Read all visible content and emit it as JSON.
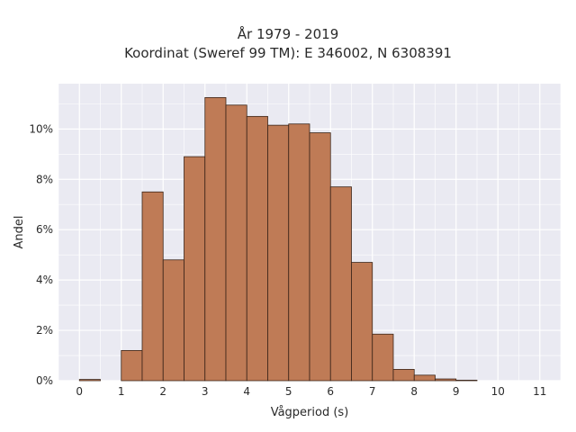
{
  "chart_data": {
    "type": "bar",
    "title_line1": "År 1979 - 2019",
    "title_line2": "Koordinat (Sweref 99 TM): E 346002, N 6308391",
    "xlabel": "Vågperiod (s)",
    "ylabel": "Andel",
    "xlim": [
      -0.5,
      11.5
    ],
    "ylim": [
      0,
      11.8
    ],
    "xticks": [
      0,
      1,
      2,
      3,
      4,
      5,
      6,
      7,
      8,
      9,
      10,
      11
    ],
    "yticks": [
      0,
      2,
      4,
      6,
      8,
      10
    ],
    "ytick_labels": [
      "0%",
      "2%",
      "4%",
      "6%",
      "8%",
      "10%"
    ],
    "bin_width": 0.5,
    "bins": [
      {
        "x0": 0.0,
        "x1": 0.5,
        "value": 0.05
      },
      {
        "x0": 1.0,
        "x1": 1.5,
        "value": 1.2
      },
      {
        "x0": 1.5,
        "x1": 2.0,
        "value": 7.5
      },
      {
        "x0": 2.0,
        "x1": 2.5,
        "value": 4.8
      },
      {
        "x0": 2.5,
        "x1": 3.0,
        "value": 8.9
      },
      {
        "x0": 3.0,
        "x1": 3.5,
        "value": 11.25
      },
      {
        "x0": 3.5,
        "x1": 4.0,
        "value": 10.95
      },
      {
        "x0": 4.0,
        "x1": 4.5,
        "value": 10.5
      },
      {
        "x0": 4.5,
        "x1": 5.0,
        "value": 10.15
      },
      {
        "x0": 5.0,
        "x1": 5.5,
        "value": 10.2
      },
      {
        "x0": 5.5,
        "x1": 6.0,
        "value": 9.85
      },
      {
        "x0": 6.0,
        "x1": 6.5,
        "value": 7.7
      },
      {
        "x0": 6.5,
        "x1": 7.0,
        "value": 4.7
      },
      {
        "x0": 7.0,
        "x1": 7.5,
        "value": 1.85
      },
      {
        "x0": 7.5,
        "x1": 8.0,
        "value": 0.45
      },
      {
        "x0": 8.0,
        "x1": 8.5,
        "value": 0.22
      },
      {
        "x0": 8.5,
        "x1": 9.0,
        "value": 0.07
      },
      {
        "x0": 9.0,
        "x1": 9.5,
        "value": 0.02
      }
    ],
    "grid": true,
    "legend": "none",
    "colors": {
      "bar_fill": "#bf7b56",
      "bar_edge": "#3a2418",
      "plot_background": "#eaeaf2",
      "grid": "#ffffff"
    }
  }
}
